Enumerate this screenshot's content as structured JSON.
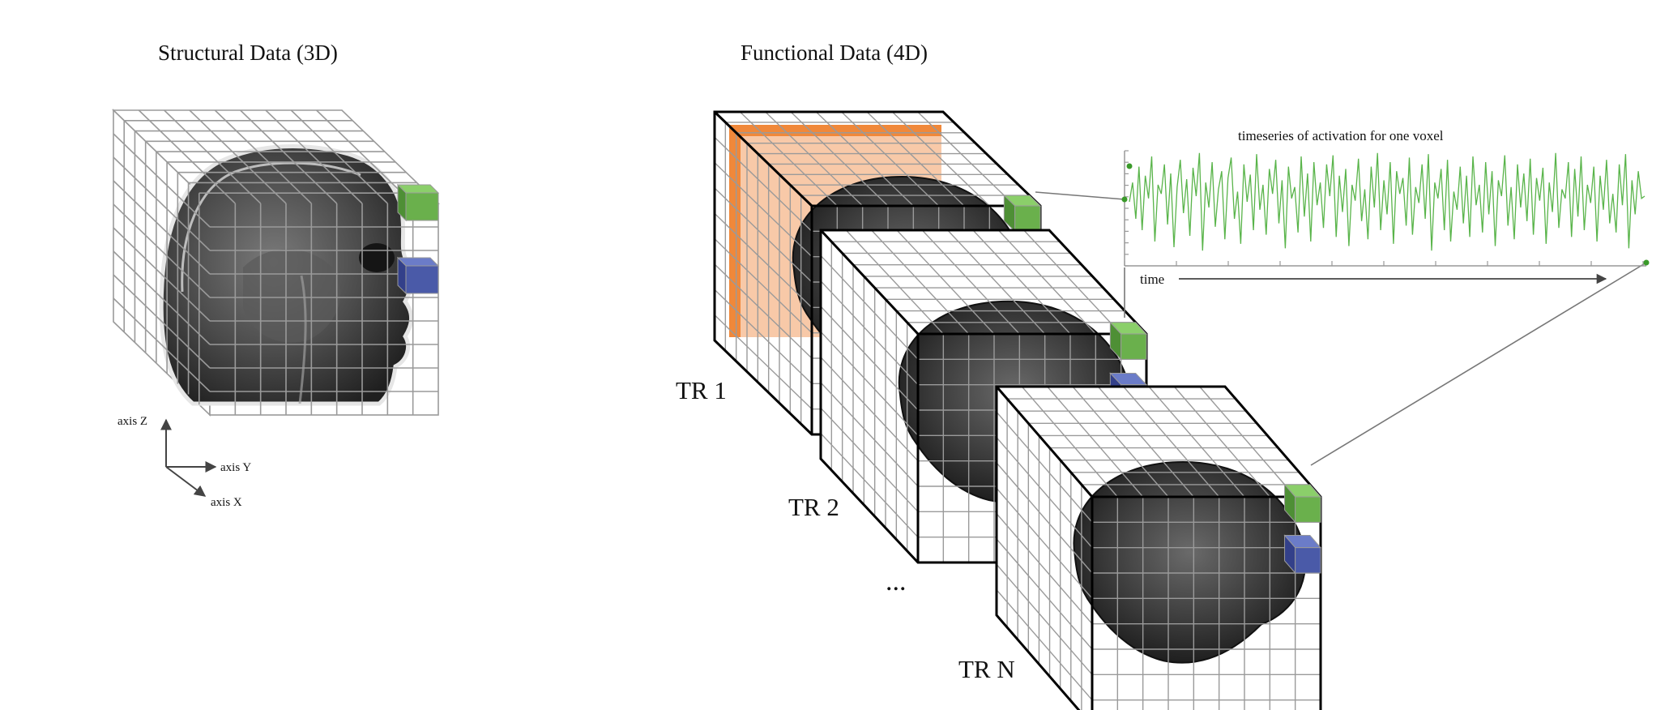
{
  "structural": {
    "title": "Structural Data (3D)",
    "axes": {
      "z": "axis Z",
      "y": "axis Y",
      "x": "axis X"
    }
  },
  "functional": {
    "title": "Functional Data (4D)",
    "volumes": [
      {
        "label": "TR 1"
      },
      {
        "label": "TR 2"
      },
      {
        "label": "TR N"
      }
    ],
    "ellipsis": "...",
    "timeseries": {
      "title": "timeseries of activation for one voxel",
      "axis_label": "time",
      "values": [
        0.55,
        0.72,
        0.4,
        0.86,
        0.3,
        0.78,
        0.58,
        0.95,
        0.2,
        0.7,
        0.62,
        0.88,
        0.35,
        0.8,
        0.15,
        0.68,
        0.92,
        0.45,
        0.75,
        0.25,
        0.85,
        0.6,
        0.98,
        0.12,
        0.72,
        0.5,
        0.9,
        0.33,
        0.66,
        0.82,
        0.22,
        0.76,
        0.94,
        0.4,
        0.64,
        0.18,
        0.88,
        0.55,
        0.79,
        0.3,
        0.97,
        0.48,
        0.7,
        0.26,
        0.84,
        0.62,
        0.92,
        0.36,
        0.74,
        0.14,
        0.86,
        0.58,
        0.68,
        0.28,
        0.95,
        0.42,
        0.8,
        0.2,
        0.9,
        0.52,
        0.72,
        0.32,
        0.88,
        0.6,
        0.96,
        0.24,
        0.78,
        0.46,
        0.84,
        0.16,
        0.7,
        0.56,
        0.93,
        0.38,
        0.66,
        0.22,
        0.86,
        0.5,
        0.98,
        0.3,
        0.74,
        0.44,
        0.9,
        0.18,
        0.82,
        0.62,
        0.76,
        0.34,
        0.94,
        0.26,
        0.68,
        0.54,
        0.88,
        0.4,
        0.97,
        0.12,
        0.72,
        0.58,
        0.84,
        0.3,
        0.92,
        0.2,
        0.64,
        0.48,
        0.86,
        0.36,
        0.78,
        0.24,
        0.95,
        0.52,
        0.7,
        0.28,
        0.9,
        0.44,
        0.82,
        0.16,
        0.74,
        0.6,
        0.96,
        0.34,
        0.68,
        0.22,
        0.88,
        0.5,
        0.8,
        0.38,
        0.93,
        0.26,
        0.76,
        0.56,
        0.85,
        0.18,
        0.72,
        0.46,
        0.98,
        0.32,
        0.66,
        0.58,
        0.9,
        0.24,
        0.84,
        0.42,
        0.95,
        0.3,
        0.7,
        0.54,
        0.86,
        0.2,
        0.78,
        0.48,
        0.92,
        0.36,
        0.62,
        0.28,
        0.88,
        0.52,
        0.97,
        0.14,
        0.74,
        0.44,
        0.82,
        0.58,
        0.6
      ]
    }
  },
  "colors": {
    "grid": "#9a9a9a",
    "frame": "#000000",
    "voxel_green": "#6ab04c",
    "voxel_blue": "#4a5aa8",
    "slice_orange": "#f0883a",
    "slice_peach": "#f8c9a8",
    "signal_green": "#59b44a"
  }
}
